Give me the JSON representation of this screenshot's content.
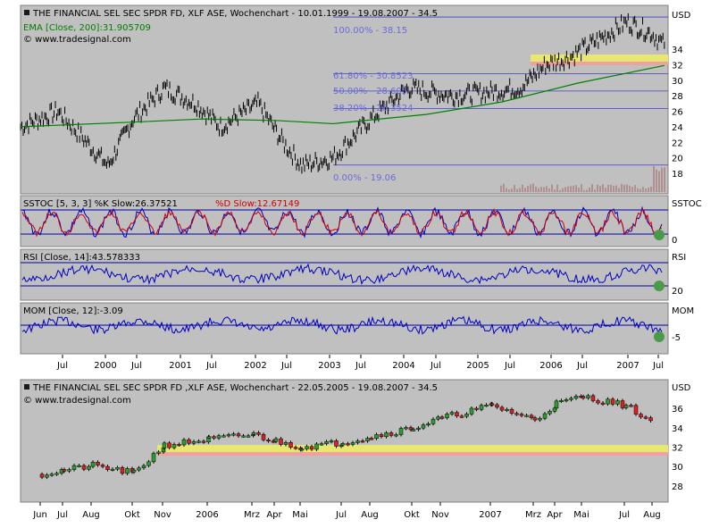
{
  "top_chart": {
    "title": "THE FINANCIAL SEL SEC SPDR FD, XLF ASE, Wochenchart - 10.01.1999 - 19.08.2007 - 34.5",
    "ema_legend": "EMA [Close, 200]:31.905709",
    "copyright": "© www.tradesignal.com",
    "currency": "USD"
  },
  "fib_labels": [
    "100.00% - 38.15",
    "61.80% - 30.8523",
    "50.00% - 28.605",
    "38.20% - 26.3524",
    "0.00% - 19.06"
  ],
  "sstoc": {
    "legend_k": "SSTOC [5, 3, 3] %K Slow:26.37521",
    "legend_d": "%D Slow:12.67149",
    "label": "SSTOC",
    "tick": "0"
  },
  "rsi": {
    "legend": "RSI [Close, 14]:43.578333",
    "label": "RSI",
    "tick": "20"
  },
  "mom": {
    "legend": "MOM [Close, 12]:-3.09",
    "label": "MOM",
    "tick": "-5"
  },
  "top_axis_labels": [
    "Jul",
    "2000",
    "Jul",
    "2001",
    "Jul",
    "2002",
    "Jul",
    "2003",
    "Jul",
    "2004",
    "Jul",
    "2005",
    "Jul",
    "2006",
    "Jul",
    "2007",
    "Jul"
  ],
  "bottom_chart": {
    "title": "THE FINANCIAL SEL SEC SPDR FD ,XLF ASE, Wochenchart - 22.05.2005 - 19.08.2007 - 34.5",
    "copyright": "© www.tradesignal.com",
    "currency": "USD"
  },
  "bottom_axis_labels": [
    "Jun",
    "Jul",
    "Aug",
    "Okt",
    "Nov",
    "2006",
    "Mrz",
    "Apr",
    "Mai",
    "Jul",
    "Aug",
    "Okt",
    "Nov",
    "2007",
    "Mrz",
    "Apr",
    "Mai",
    "Jul",
    "Aug"
  ],
  "chart_data": [
    {
      "type": "line",
      "title": "THE FINANCIAL SEL SEC SPDR FD, XLF ASE, Wochenchart - 10.01.1999 - 19.08.2007 - 34.5",
      "ylabel": "USD",
      "ylim": [
        17,
        38.5
      ],
      "yticks": [
        18,
        20,
        22,
        24,
        26,
        28,
        30,
        32,
        34
      ],
      "series": [
        {
          "name": "XLF",
          "x": [
            "1999-01",
            "1999-07",
            "2000-03",
            "2000-07",
            "2000-12",
            "2001-05",
            "2001-09",
            "2002-03",
            "2002-07",
            "2002-10",
            "2003-03",
            "2003-09",
            "2004-03",
            "2004-10",
            "2005-04",
            "2005-09",
            "2006-01",
            "2006-05",
            "2006-09",
            "2006-12",
            "2007-02",
            "2007-06",
            "2007-08"
          ],
          "y": [
            24,
            26,
            19,
            25,
            29,
            27,
            24,
            27,
            22,
            19,
            20,
            25,
            29,
            28,
            28.5,
            29,
            32,
            33,
            35,
            36.5,
            37.5,
            36,
            34.5
          ]
        },
        {
          "name": "EMA [Close, 200]",
          "x": [
            "1999-01",
            "2000-07",
            "2001-06",
            "2002-06",
            "2003-03",
            "2004-06",
            "2005-06",
            "2006-06",
            "2007-08"
          ],
          "y": [
            24,
            24.6,
            25,
            24.8,
            24.4,
            25.6,
            27.2,
            29.6,
            31.9
          ]
        }
      ],
      "fibonacci_levels": [
        38.15,
        30.8523,
        28.605,
        26.3524,
        19.06
      ]
    },
    {
      "type": "line",
      "title": "SSTOC [5, 3, 3]",
      "series": [
        {
          "name": "%K Slow",
          "last": 26.37521
        },
        {
          "name": "%D Slow",
          "last": 12.67149
        }
      ]
    },
    {
      "type": "line",
      "title": "RSI [Close, 14]",
      "series": [
        {
          "name": "RSI",
          "last": 43.578333
        }
      ]
    },
    {
      "type": "line",
      "title": "MOM [Close, 12]",
      "series": [
        {
          "name": "MOM",
          "last": -3.09
        }
      ]
    },
    {
      "type": "bar",
      "title": "THE FINANCIAL SEL SEC SPDR FD ,XLF ASE, Wochenchart - 22.05.2005 - 19.08.2007 - 34.5",
      "ylabel": "USD",
      "ylim": [
        26.5,
        38.5
      ],
      "yticks": [
        28,
        30,
        32,
        34,
        36
      ],
      "x": [
        "2005-06",
        "2005-07",
        "2005-08",
        "2005-10",
        "2005-11",
        "2006-01",
        "2006-03",
        "2006-04",
        "2006-05",
        "2006-07",
        "2006-08",
        "2006-10",
        "2006-11",
        "2007-01",
        "2007-03",
        "2007-04",
        "2007-05",
        "2007-07",
        "2007-08"
      ],
      "y": [
        29.2,
        29.6,
        30.1,
        29.3,
        32.2,
        32.8,
        33.3,
        32.6,
        32.0,
        32.5,
        33.1,
        34.0,
        35.0,
        36.3,
        34.8,
        36.5,
        37.2,
        36.3,
        34.5
      ]
    }
  ]
}
